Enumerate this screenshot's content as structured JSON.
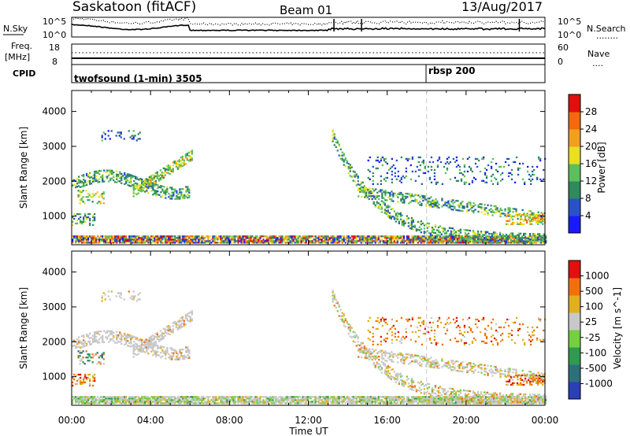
{
  "header": {
    "station": "Saskatoon (fitACF)",
    "beam": "Beam 01",
    "date": "13/Aug/2017"
  },
  "sky_panel": {
    "label": "N.Sky",
    "left_ticks": [
      "10^5",
      "10^0"
    ],
    "right_ticks": [
      "10^5",
      "10^0"
    ],
    "right_label": "N.Search",
    "right_legend": "........"
  },
  "freq_panel": {
    "label_top": "Freq.",
    "label_unit": "[MHz]",
    "left_ticks": [
      "18",
      "8"
    ],
    "right_ticks": [
      "60",
      "0"
    ],
    "right_label": "Nave",
    "right_legend": "...."
  },
  "cpid_panel": {
    "label": "CPID",
    "programs": [
      {
        "name": "twofsound (1-min) 3505",
        "start_hour": 0
      },
      {
        "name": "rbsp 200",
        "start_hour": 18
      }
    ]
  },
  "chart_data": [
    {
      "type": "heatmap",
      "title": "Power",
      "ylabel": "Slant Range [km]",
      "xlabel": "Time UT",
      "ylim": [
        180,
        4600
      ],
      "xlim_hours": [
        0,
        24
      ],
      "yticks": [
        1000,
        2000,
        3000,
        4000
      ],
      "xtick_labels": [
        "00:00",
        "04:00",
        "08:00",
        "12:00",
        "16:00",
        "20:00",
        "00:00"
      ],
      "colorbar": {
        "label": "Power [dB]",
        "levels": [
          0,
          4,
          8,
          12,
          16,
          20,
          24,
          28,
          32
        ],
        "tick_labels": [
          "4",
          "8",
          "12",
          "16",
          "20",
          "24",
          "28"
        ],
        "colors": [
          "#1a1aff",
          "#2a52c8",
          "#2f8a5e",
          "#5cbf5c",
          "#e8e020",
          "#f0a020",
          "#f06a10",
          "#e01010"
        ]
      }
    },
    {
      "type": "heatmap",
      "title": "Velocity",
      "ylabel": "Slant Range [km]",
      "xlabel": "Time UT",
      "ylim": [
        180,
        4600
      ],
      "xlim_hours": [
        0,
        24
      ],
      "yticks": [
        1000,
        2000,
        3000,
        4000
      ],
      "xtick_labels": [
        "00:00",
        "04:00",
        "08:00",
        "12:00",
        "16:00",
        "20:00",
        "00:00"
      ],
      "colorbar": {
        "label": "Velocity [m s^-1]",
        "tick_labels": [
          "1000",
          "500",
          "100",
          "25",
          "-25",
          "-100",
          "-500",
          "-1000"
        ],
        "colors": [
          "#2a3fb8",
          "#2f6f7a",
          "#2f9a50",
          "#74d040",
          "#c8c8c8",
          "#e0b020",
          "#f07010",
          "#e01010"
        ]
      }
    }
  ],
  "colors": {
    "dashed_marker": "#c8c8c8",
    "axis": "#000000"
  }
}
